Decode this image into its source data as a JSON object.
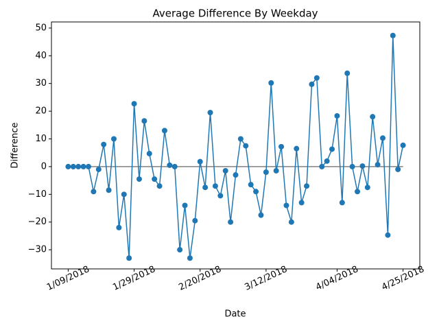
{
  "chart_data": {
    "type": "line",
    "title": "Average Difference By Weekday",
    "x_label": "Date",
    "y_label": "Difference",
    "categories": [
      "1/09/2018",
      null,
      null,
      null,
      null,
      null,
      null,
      null,
      null,
      null,
      null,
      null,
      null,
      "1/29/2018",
      null,
      null,
      null,
      null,
      null,
      null,
      null,
      null,
      null,
      null,
      null,
      null,
      "2/20/2018",
      null,
      null,
      null,
      null,
      null,
      null,
      null,
      null,
      null,
      null,
      null,
      null,
      "3/12/2018",
      null,
      null,
      null,
      null,
      null,
      null,
      null,
      null,
      null,
      null,
      null,
      null,
      null,
      "4/04/2018",
      null,
      null,
      null,
      null,
      null,
      null,
      null,
      null,
      null,
      null,
      null,
      null,
      "4/25/2018"
    ],
    "series": [
      {
        "color": "#1f77b4",
        "values": [
          0,
          0,
          0,
          0,
          0,
          -9,
          -1,
          8,
          -8.5,
          10,
          -22,
          -10,
          -33,
          22.7,
          -4.5,
          16.5,
          4.7,
          -4.5,
          -7,
          13,
          0.5,
          0,
          -30,
          -14,
          -33,
          -19.5,
          1.8,
          -7.5,
          19.5,
          -7,
          -10.5,
          -1.5,
          -20,
          -3,
          10,
          7.5,
          -6.5,
          -9,
          -17.5,
          -2,
          30.2,
          -1.5,
          7.2,
          -14,
          -20,
          6.5,
          -13,
          -7,
          29.7,
          32,
          0,
          2,
          6.3,
          18.3,
          -13,
          33.7,
          0,
          -9,
          0.2,
          -7.5,
          18,
          0.7,
          10.3,
          -24.7,
          47.3,
          -1,
          7.7
        ]
      }
    ],
    "reference_line": 0,
    "reference_color": "#808080",
    "ylim": [
      -36.9,
      52.2
    ],
    "yticks": [
      {
        "value": -30,
        "label": "−30"
      },
      {
        "value": -20,
        "label": "−20"
      },
      {
        "value": -10,
        "label": "−10"
      },
      0,
      10,
      20,
      30,
      40,
      50
    ]
  }
}
